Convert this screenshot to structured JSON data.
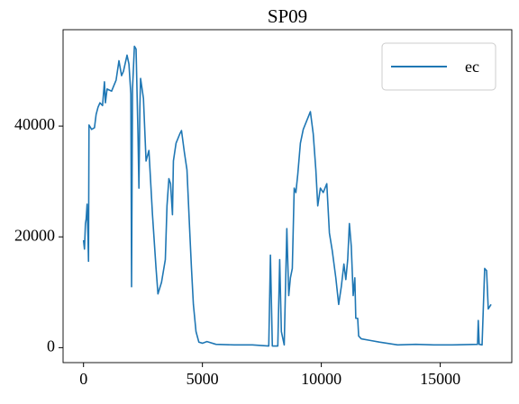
{
  "chart_data": {
    "type": "line",
    "title": "SP09",
    "x": [
      0,
      40,
      80,
      110,
      150,
      190,
      210,
      230,
      340,
      460,
      530,
      610,
      690,
      800,
      880,
      920,
      990,
      1180,
      1370,
      1490,
      1600,
      1680,
      1830,
      1910,
      1990,
      2020,
      2060,
      2140,
      2210,
      2290,
      2330,
      2370,
      2400,
      2520,
      2630,
      2750,
      2900,
      3050,
      3130,
      3280,
      3440,
      3510,
      3590,
      3660,
      3740,
      3780,
      3890,
      4050,
      4120,
      4240,
      4350,
      4470,
      4540,
      4620,
      4730,
      4850,
      5000,
      5190,
      5570,
      6340,
      7100,
      7790,
      7860,
      7940,
      8170,
      8250,
      8320,
      8440,
      8550,
      8630,
      8700,
      8780,
      8860,
      8930,
      9010,
      9120,
      9240,
      9390,
      9540,
      9660,
      9770,
      9850,
      9960,
      10080,
      10230,
      10340,
      10460,
      10610,
      10730,
      10840,
      10950,
      11030,
      11110,
      11180,
      11260,
      11340,
      11410,
      11450,
      11530,
      11570,
      11680,
      12060,
      12440,
      13210,
      13970,
      14730,
      15500,
      16570,
      16600,
      16640,
      16760,
      16870,
      16950,
      17020,
      17140
    ],
    "series": [
      {
        "name": "ec",
        "color": "#1f77b4",
        "values": [
          19400,
          17800,
          22400,
          23200,
          25900,
          19400,
          15600,
          40200,
          39400,
          39700,
          42100,
          43400,
          44200,
          43700,
          48000,
          44200,
          46700,
          46300,
          48300,
          51800,
          49100,
          49900,
          52800,
          51200,
          45800,
          11000,
          46700,
          54400,
          53900,
          38600,
          28800,
          43400,
          48600,
          45000,
          33700,
          35600,
          24000,
          14300,
          9700,
          11800,
          15900,
          25600,
          30500,
          29600,
          24000,
          33700,
          36900,
          38600,
          39200,
          35300,
          32100,
          20700,
          14300,
          7800,
          2900,
          1000,
          800,
          1100,
          600,
          500,
          500,
          300,
          16700,
          300,
          300,
          15900,
          2900,
          500,
          21500,
          9400,
          12600,
          14300,
          28800,
          28000,
          31300,
          36900,
          39400,
          41000,
          42600,
          38600,
          32100,
          25600,
          28800,
          28000,
          29600,
          20700,
          17500,
          12600,
          7800,
          11000,
          15100,
          12300,
          15900,
          22400,
          18300,
          9400,
          12600,
          5300,
          5300,
          2100,
          1600,
          1300,
          1000,
          500,
          600,
          500,
          500,
          600,
          4900,
          600,
          500,
          14300,
          13900,
          7000,
          7800
        ]
      }
    ],
    "xlim": [
      -860,
      18010
    ],
    "ylim": [
      -2700,
      57400
    ],
    "xticks": [
      0,
      5000,
      10000,
      15000
    ],
    "yticks": [
      0,
      20000,
      40000
    ],
    "legend": "upper right"
  }
}
